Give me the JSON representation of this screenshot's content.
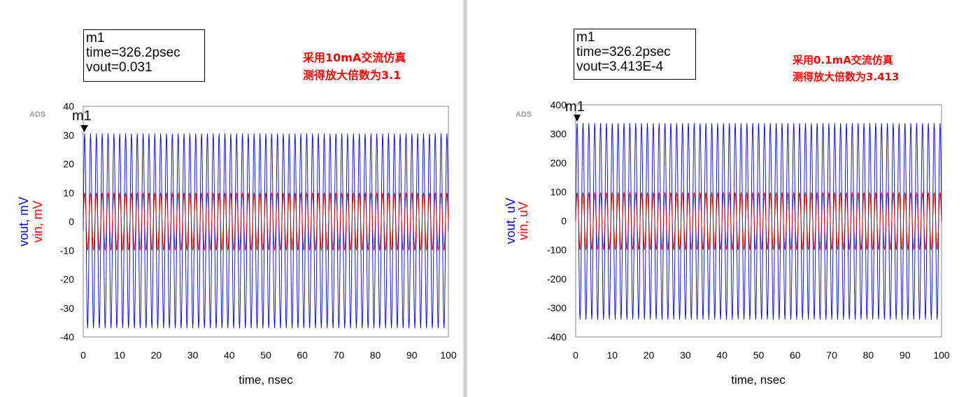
{
  "chart_data": [
    {
      "type": "line",
      "logo": "ADS",
      "xlabel": "time, nsec",
      "ylabel_parts": [
        {
          "text": "vout, mV",
          "color": "#0000ff"
        },
        {
          "text": "vin, mV",
          "color": "#ff0000"
        }
      ],
      "xlim": [
        0,
        100
      ],
      "ylim": [
        -40,
        40
      ],
      "xticks": [
        0,
        10,
        20,
        30,
        40,
        50,
        60,
        70,
        80,
        90,
        100
      ],
      "yticks": [
        40,
        30,
        20,
        10,
        0,
        -10,
        -20,
        -30,
        -40
      ],
      "series": [
        {
          "name": "vout",
          "color": "#0000cc",
          "max": 30.5,
          "min": -37.0,
          "period_ns": 1.6
        },
        {
          "name": "vin",
          "color": "#cc0000",
          "max": 10.0,
          "min": -10.0,
          "period_ns": 1.6
        }
      ],
      "marker": {
        "name": "m1",
        "x": 0.3262,
        "lines": [
          "m1",
          "time=326.2psec",
          "vout=0.031"
        ]
      },
      "annotation": [
        "采用10mA交流仿真",
        "测得放大倍数为3.1"
      ]
    },
    {
      "type": "line",
      "logo": "ADS",
      "xlabel": "time, nsec",
      "ylabel_parts": [
        {
          "text": "vout, uV",
          "color": "#0000ff"
        },
        {
          "text": "vin, uV",
          "color": "#ff0000"
        }
      ],
      "xlim": [
        0,
        100
      ],
      "ylim": [
        -400,
        400
      ],
      "xticks": [
        0,
        10,
        20,
        30,
        40,
        50,
        60,
        70,
        80,
        90,
        100
      ],
      "yticks": [
        400,
        300,
        200,
        100,
        0,
        -100,
        -200,
        -300,
        -400
      ],
      "series": [
        {
          "name": "vout",
          "color": "#0000cc",
          "max": 337,
          "min": -340,
          "period_ns": 1.6
        },
        {
          "name": "vin",
          "color": "#cc0000",
          "max": 98,
          "min": -100,
          "period_ns": 1.6
        }
      ],
      "marker": {
        "name": "m1",
        "x": 0.3262,
        "lines": [
          "m1",
          "time=326.2psec",
          "vout=3.413E-4"
        ]
      },
      "annotation": [
        "采用0.1mA交流仿真",
        "测得放大倍数为3.413"
      ]
    }
  ]
}
